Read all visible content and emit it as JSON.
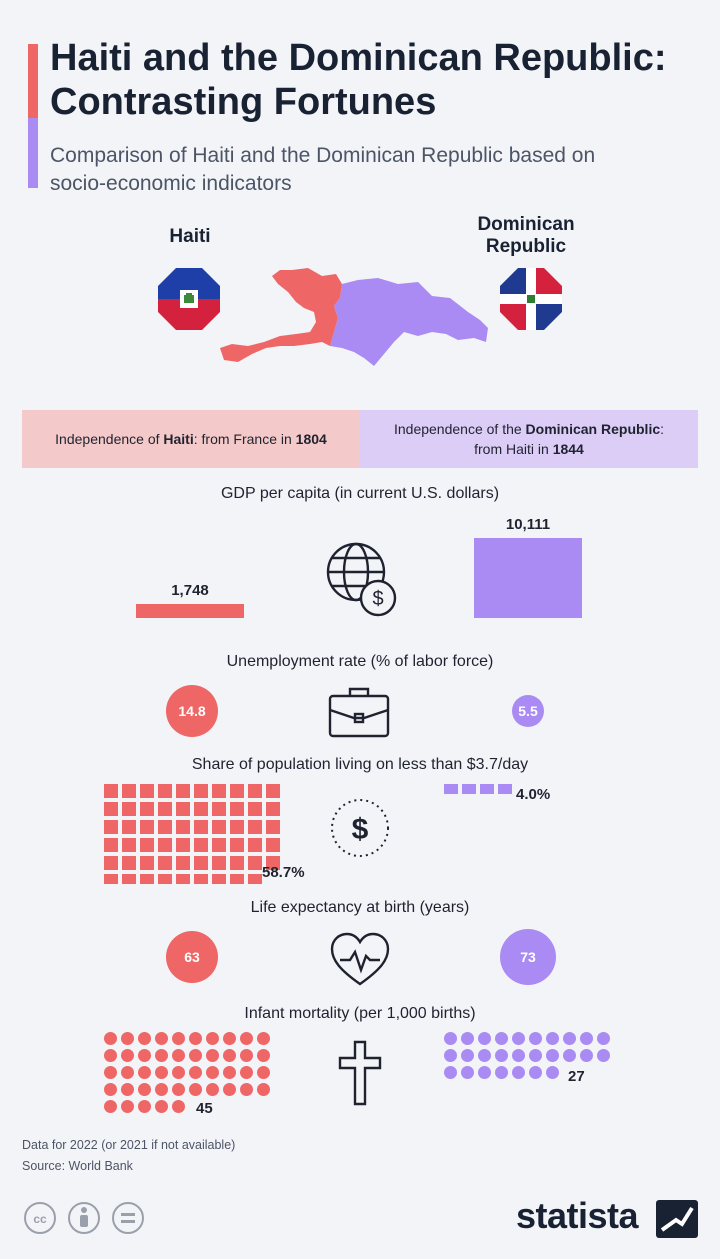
{
  "title": "Haiti and the Dominican Republic: Contrasting Fortunes",
  "subtitle": "Comparison of Haiti and the Dominican Republic based on socio-economic indicators",
  "countries": {
    "haiti": "Haiti",
    "dominican_republic": "Dominican Republic"
  },
  "independence": {
    "haiti_prefix": "Independence of ",
    "haiti_name": "Haiti",
    "haiti_mid": ": from France in ",
    "haiti_year": "1804",
    "dr_prefix": "Independence of the ",
    "dr_name": "Dominican Republic",
    "dr_mid": ":",
    "dr_line2": "from Haiti in ",
    "dr_year": "1844"
  },
  "colors": {
    "haiti": "#ef6666",
    "dominican_republic": "#a98bf3",
    "dark": "#182233"
  },
  "icons": [
    "globe-dollar-icon",
    "briefcase-icon",
    "dollar-coin-icon",
    "heart-pulse-icon",
    "cross-icon"
  ],
  "chart_data": [
    {
      "type": "bar",
      "title": "GDP per capita (in current U.S. dollars)",
      "categories": [
        "Haiti",
        "Dominican Republic"
      ],
      "values": [
        1748,
        10111
      ],
      "labels": [
        "1,748",
        "10,111"
      ]
    },
    {
      "type": "bubble",
      "title": "Unemployment rate (% of labor force)",
      "categories": [
        "Haiti",
        "Dominican Republic"
      ],
      "values": [
        14.8,
        5.5
      ],
      "labels": [
        "14.8",
        "5.5"
      ]
    },
    {
      "type": "waffle",
      "title": "Share of population living on less than $3.7/day",
      "categories": [
        "Haiti",
        "Dominican Republic"
      ],
      "values": [
        58.7,
        4.0
      ],
      "labels": [
        "58.7%",
        "4.0%"
      ]
    },
    {
      "type": "bubble",
      "title": "Life expectancy at birth (years)",
      "categories": [
        "Haiti",
        "Dominican Republic"
      ],
      "values": [
        63,
        73
      ],
      "labels": [
        "63",
        "73"
      ]
    },
    {
      "type": "dot-matrix",
      "title": "Infant mortality (per 1,000 births)",
      "categories": [
        "Haiti",
        "Dominican Republic"
      ],
      "values": [
        45,
        27
      ],
      "labels": [
        "45",
        "27"
      ]
    }
  ],
  "footer": {
    "note": "Data for 2022 (or 2021 if not available)",
    "source": "Source: World Bank",
    "brand": "statista"
  }
}
